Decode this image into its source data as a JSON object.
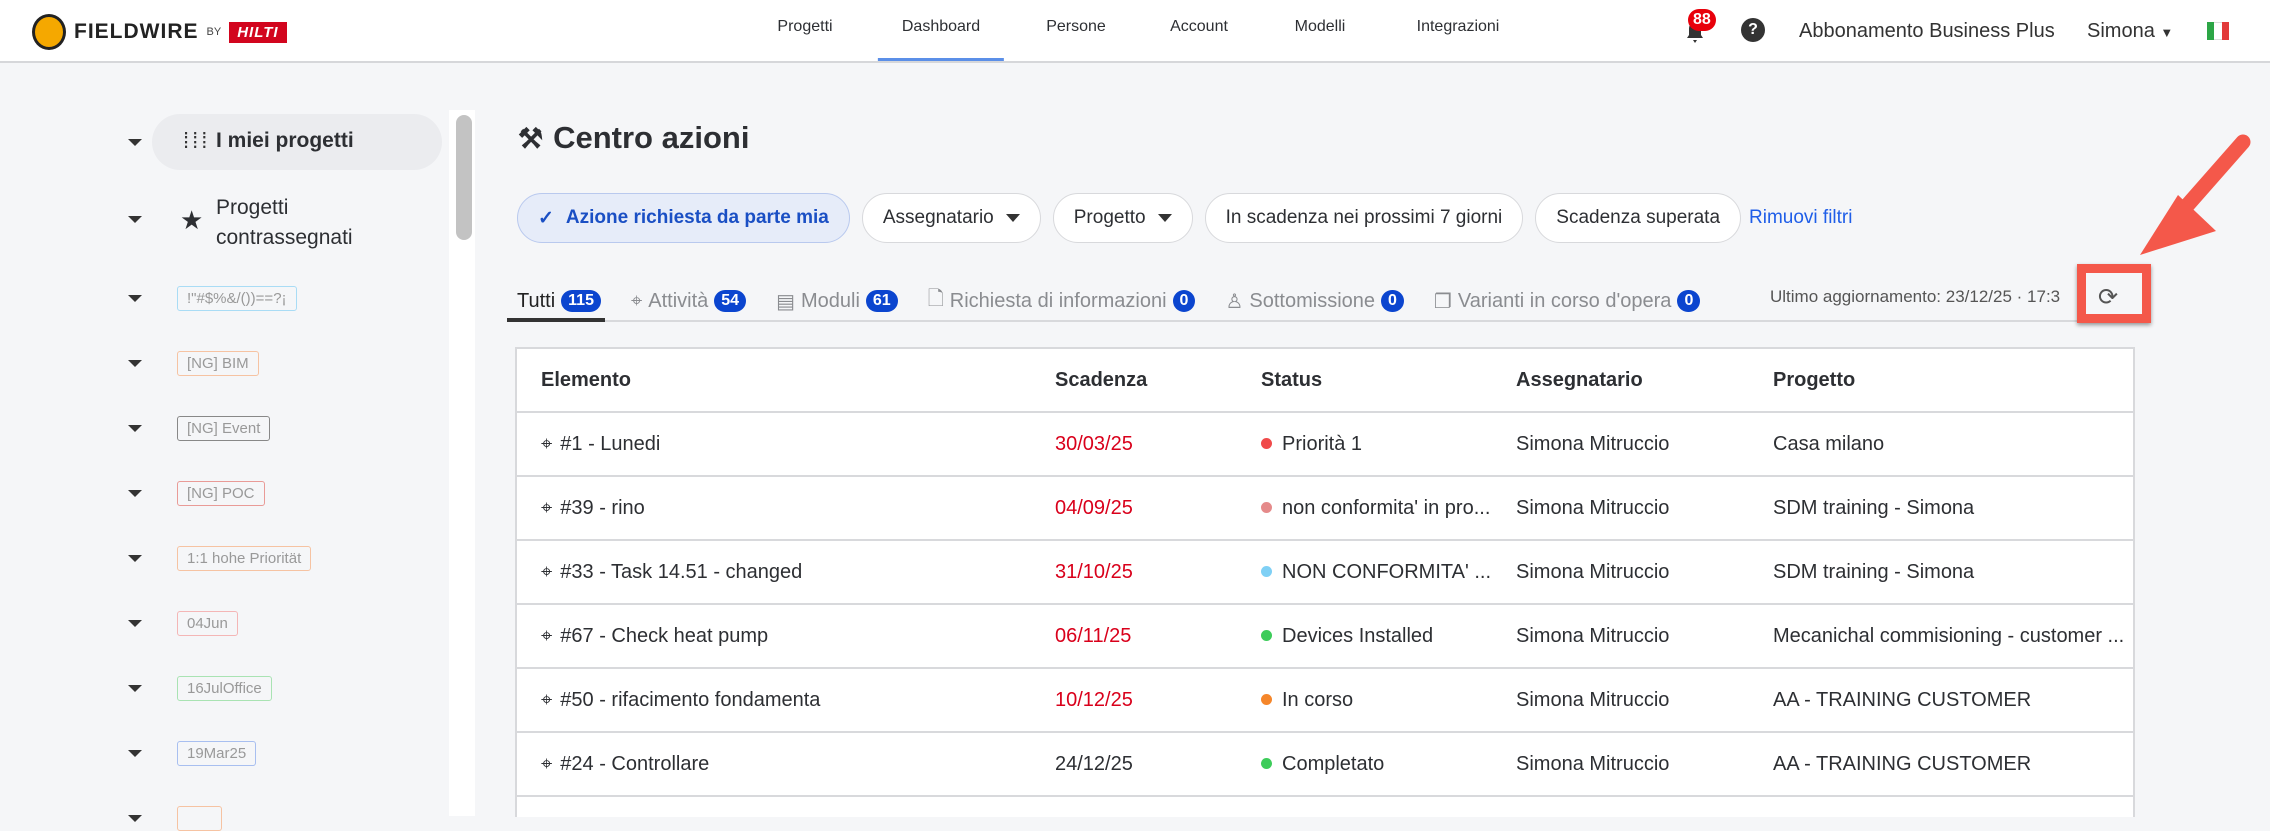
{
  "header": {
    "brand": "FIELDWIRE",
    "by": "BY",
    "partner": "HILTI",
    "nav": [
      {
        "label": "Progetti"
      },
      {
        "label": "Dashboard",
        "active": true
      },
      {
        "label": "Persone"
      },
      {
        "label": "Account"
      },
      {
        "label": "Modelli"
      },
      {
        "label": "Integrazioni"
      }
    ],
    "notifications": "88",
    "help": "?",
    "subscription": "Abbonamento Business Plus",
    "user": "Simona",
    "flag": "italy-flag"
  },
  "sidebar": {
    "items": [
      {
        "label": "I miei progetti",
        "icon": "grid-icon"
      },
      {
        "label": "Progetti contrassegnati",
        "icon": "star-icon"
      }
    ],
    "tags": [
      {
        "label": "!\"#$%&/())==?¡",
        "color": "#a9dcf5"
      },
      {
        "label": "[NG] BIM",
        "color": "#f6c3a2"
      },
      {
        "label": "[NG] Event",
        "color": "#888888"
      },
      {
        "label": "[NG] POC",
        "color": "#e99b97"
      },
      {
        "label": "1:1 hohe Priorität",
        "color": "#f6c3a2"
      },
      {
        "label": "04Jun",
        "color": "#f4b6b6"
      },
      {
        "label": "16JulOffice",
        "color": "#a9e3b3"
      },
      {
        "label": "19Mar25",
        "color": "#a8bff0"
      },
      {
        "label": "",
        "color": "#f6c3a2"
      }
    ]
  },
  "main": {
    "title": "Centro azioni",
    "filters": {
      "active": "Azione richiesta da parte mia",
      "assignee": "Assegnatario",
      "project": "Progetto",
      "due_soon": "In scadenza nei prossimi 7 giorni",
      "overdue": "Scadenza superata",
      "clear": "Rimuovi filtri"
    },
    "tabs": [
      {
        "label": "Tutti",
        "count": "115",
        "icon": ""
      },
      {
        "label": "Attività",
        "count": "54",
        "icon": "pin-icon"
      },
      {
        "label": "Moduli",
        "count": "61",
        "icon": "clipboard-icon"
      },
      {
        "label": "Richiesta di informazioni",
        "count": "0",
        "icon": "document-info-icon"
      },
      {
        "label": "Sottomissione",
        "count": "0",
        "icon": "stamp-icon"
      },
      {
        "label": "Varianti in corso d'opera",
        "count": "0",
        "icon": "copy-icon"
      }
    ],
    "last_update": "Ultimo aggiornamento: 23/12/25 · 17:3",
    "table": {
      "columns": [
        "Elemento",
        "Scadenza",
        "Status",
        "Assegnatario",
        "Progetto"
      ],
      "rows": [
        {
          "item": "#1 - Lunedi",
          "due": "30/03/25",
          "overdue": true,
          "status": "Priorità 1",
          "status_color": "#f04a4a",
          "assignee": "Simona Mitruccio",
          "project": "Casa milano"
        },
        {
          "item": "#39 - rino",
          "due": "04/09/25",
          "overdue": true,
          "status": "non conformita' in pro...",
          "status_color": "#e58a8a",
          "assignee": "Simona Mitruccio",
          "project": "SDM training - Simona"
        },
        {
          "item": "#33 - Task 14.51 - changed",
          "due": "31/10/25",
          "overdue": true,
          "status": "NON CONFORMITA' ...",
          "status_color": "#7fd0f5",
          "assignee": "Simona Mitruccio",
          "project": "SDM training - Simona"
        },
        {
          "item": "#67 - Check heat pump",
          "due": "06/11/25",
          "overdue": true,
          "status": "Devices Installed",
          "status_color": "#3dcc5a",
          "assignee": "Simona Mitruccio",
          "project": "Mecanichal commisioning - customer ..."
        },
        {
          "item": "#50 - rifacimento fondamenta",
          "due": "10/12/25",
          "overdue": true,
          "status": "In corso",
          "status_color": "#f5862a",
          "assignee": "Simona Mitruccio",
          "project": "AA - TRAINING CUSTOMER"
        },
        {
          "item": "#24 - Controllare",
          "due": "24/12/25",
          "overdue": false,
          "status": "Completato",
          "status_color": "#3dcc5a",
          "assignee": "Simona Mitruccio",
          "project": "AA - TRAINING CUSTOMER"
        }
      ]
    }
  },
  "annotation": {
    "color": "#f4584a"
  }
}
